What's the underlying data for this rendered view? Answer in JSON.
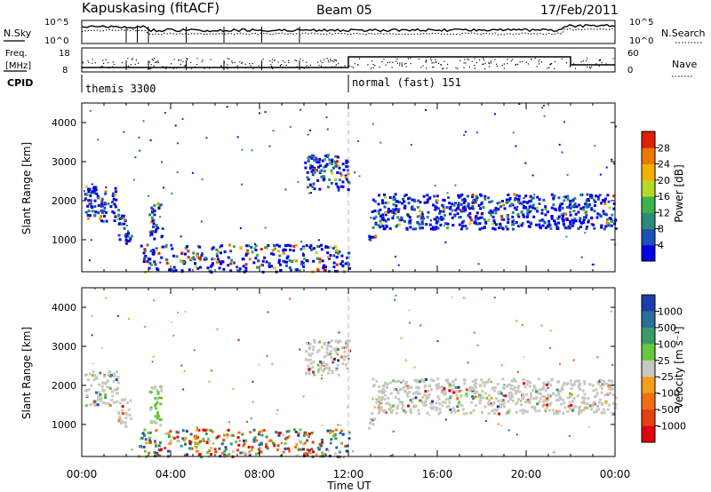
{
  "header": {
    "station": "Kapuskasing (fitACF)",
    "beam": "Beam 05",
    "date": "17/Feb/2011"
  },
  "noise_panel": {
    "left_label": "N.Sky",
    "right_label": "N.Search",
    "left_ticks": [
      "10^5",
      "10^0"
    ],
    "right_ticks": [
      "10^5",
      "10^0"
    ]
  },
  "freq_panel": {
    "left_label_top": "Freq.",
    "left_label_bottom": "[MHz]",
    "right_label": "Nave",
    "left_ticks": [
      "18",
      "8"
    ],
    "right_ticks": [
      "60",
      "0"
    ]
  },
  "cpid": {
    "label": "CPID",
    "segments": [
      {
        "name": "themis 3300",
        "start_hour": 0,
        "end_hour": 12
      },
      {
        "name": "normal (fast) 151",
        "start_hour": 12,
        "end_hour": 24
      }
    ]
  },
  "time_axis": {
    "ticks": [
      "00:00",
      "04:00",
      "08:00",
      "12:00",
      "16:00",
      "20:00",
      "00:00"
    ],
    "label": "Time UT"
  },
  "range_axis": {
    "label": "Slant Range [km]",
    "ticks": [
      "1000",
      "2000",
      "3000",
      "4000"
    ]
  },
  "power_colorbar": {
    "label": "Power [dB]",
    "ticks": [
      "4",
      "8",
      "12",
      "16",
      "20",
      "24",
      "28"
    ],
    "colors": [
      "#0000e6",
      "#1f4fb8",
      "#2d8a7a",
      "#3cb34a",
      "#b5d92a",
      "#f5b000",
      "#f07800",
      "#e02000"
    ]
  },
  "velocity_colorbar": {
    "label": "Velocity [m s⁻¹]",
    "ticks": [
      "1000",
      "500",
      "100",
      "25",
      "-25",
      "-100",
      "-500",
      "-1000"
    ],
    "colors": [
      "#1c3ea8",
      "#2a6e9a",
      "#3c9a66",
      "#66c83a",
      "#c8c8c0",
      "#f5a018",
      "#f07010",
      "#e84010",
      "#e00010"
    ]
  },
  "chart_data": {
    "type": "heatmap",
    "x_range_hours": [
      0,
      24
    ],
    "y_range_km": [
      180,
      4500
    ],
    "features": [
      {
        "start_hour": 0.1,
        "end_hour": 1.6,
        "range_min": 1500,
        "range_max": 2400
      },
      {
        "start_hour": 1.6,
        "end_hour": 2.2,
        "range_min": 900,
        "range_max": 1700
      },
      {
        "start_hour": 3.0,
        "end_hour": 3.6,
        "range_min": 1000,
        "range_max": 2000
      },
      {
        "start_hour": 2.5,
        "end_hour": 12.0,
        "range_min": 200,
        "range_max": 900
      },
      {
        "start_hour": 10.0,
        "end_hour": 12.0,
        "range_min": 2300,
        "range_max": 3200
      },
      {
        "start_hour": 13.0,
        "end_hour": 24.0,
        "range_min": 1300,
        "range_max": 2200
      },
      {
        "start_hour": 12.8,
        "end_hour": 13.2,
        "range_min": 900,
        "range_max": 1200
      }
    ]
  }
}
